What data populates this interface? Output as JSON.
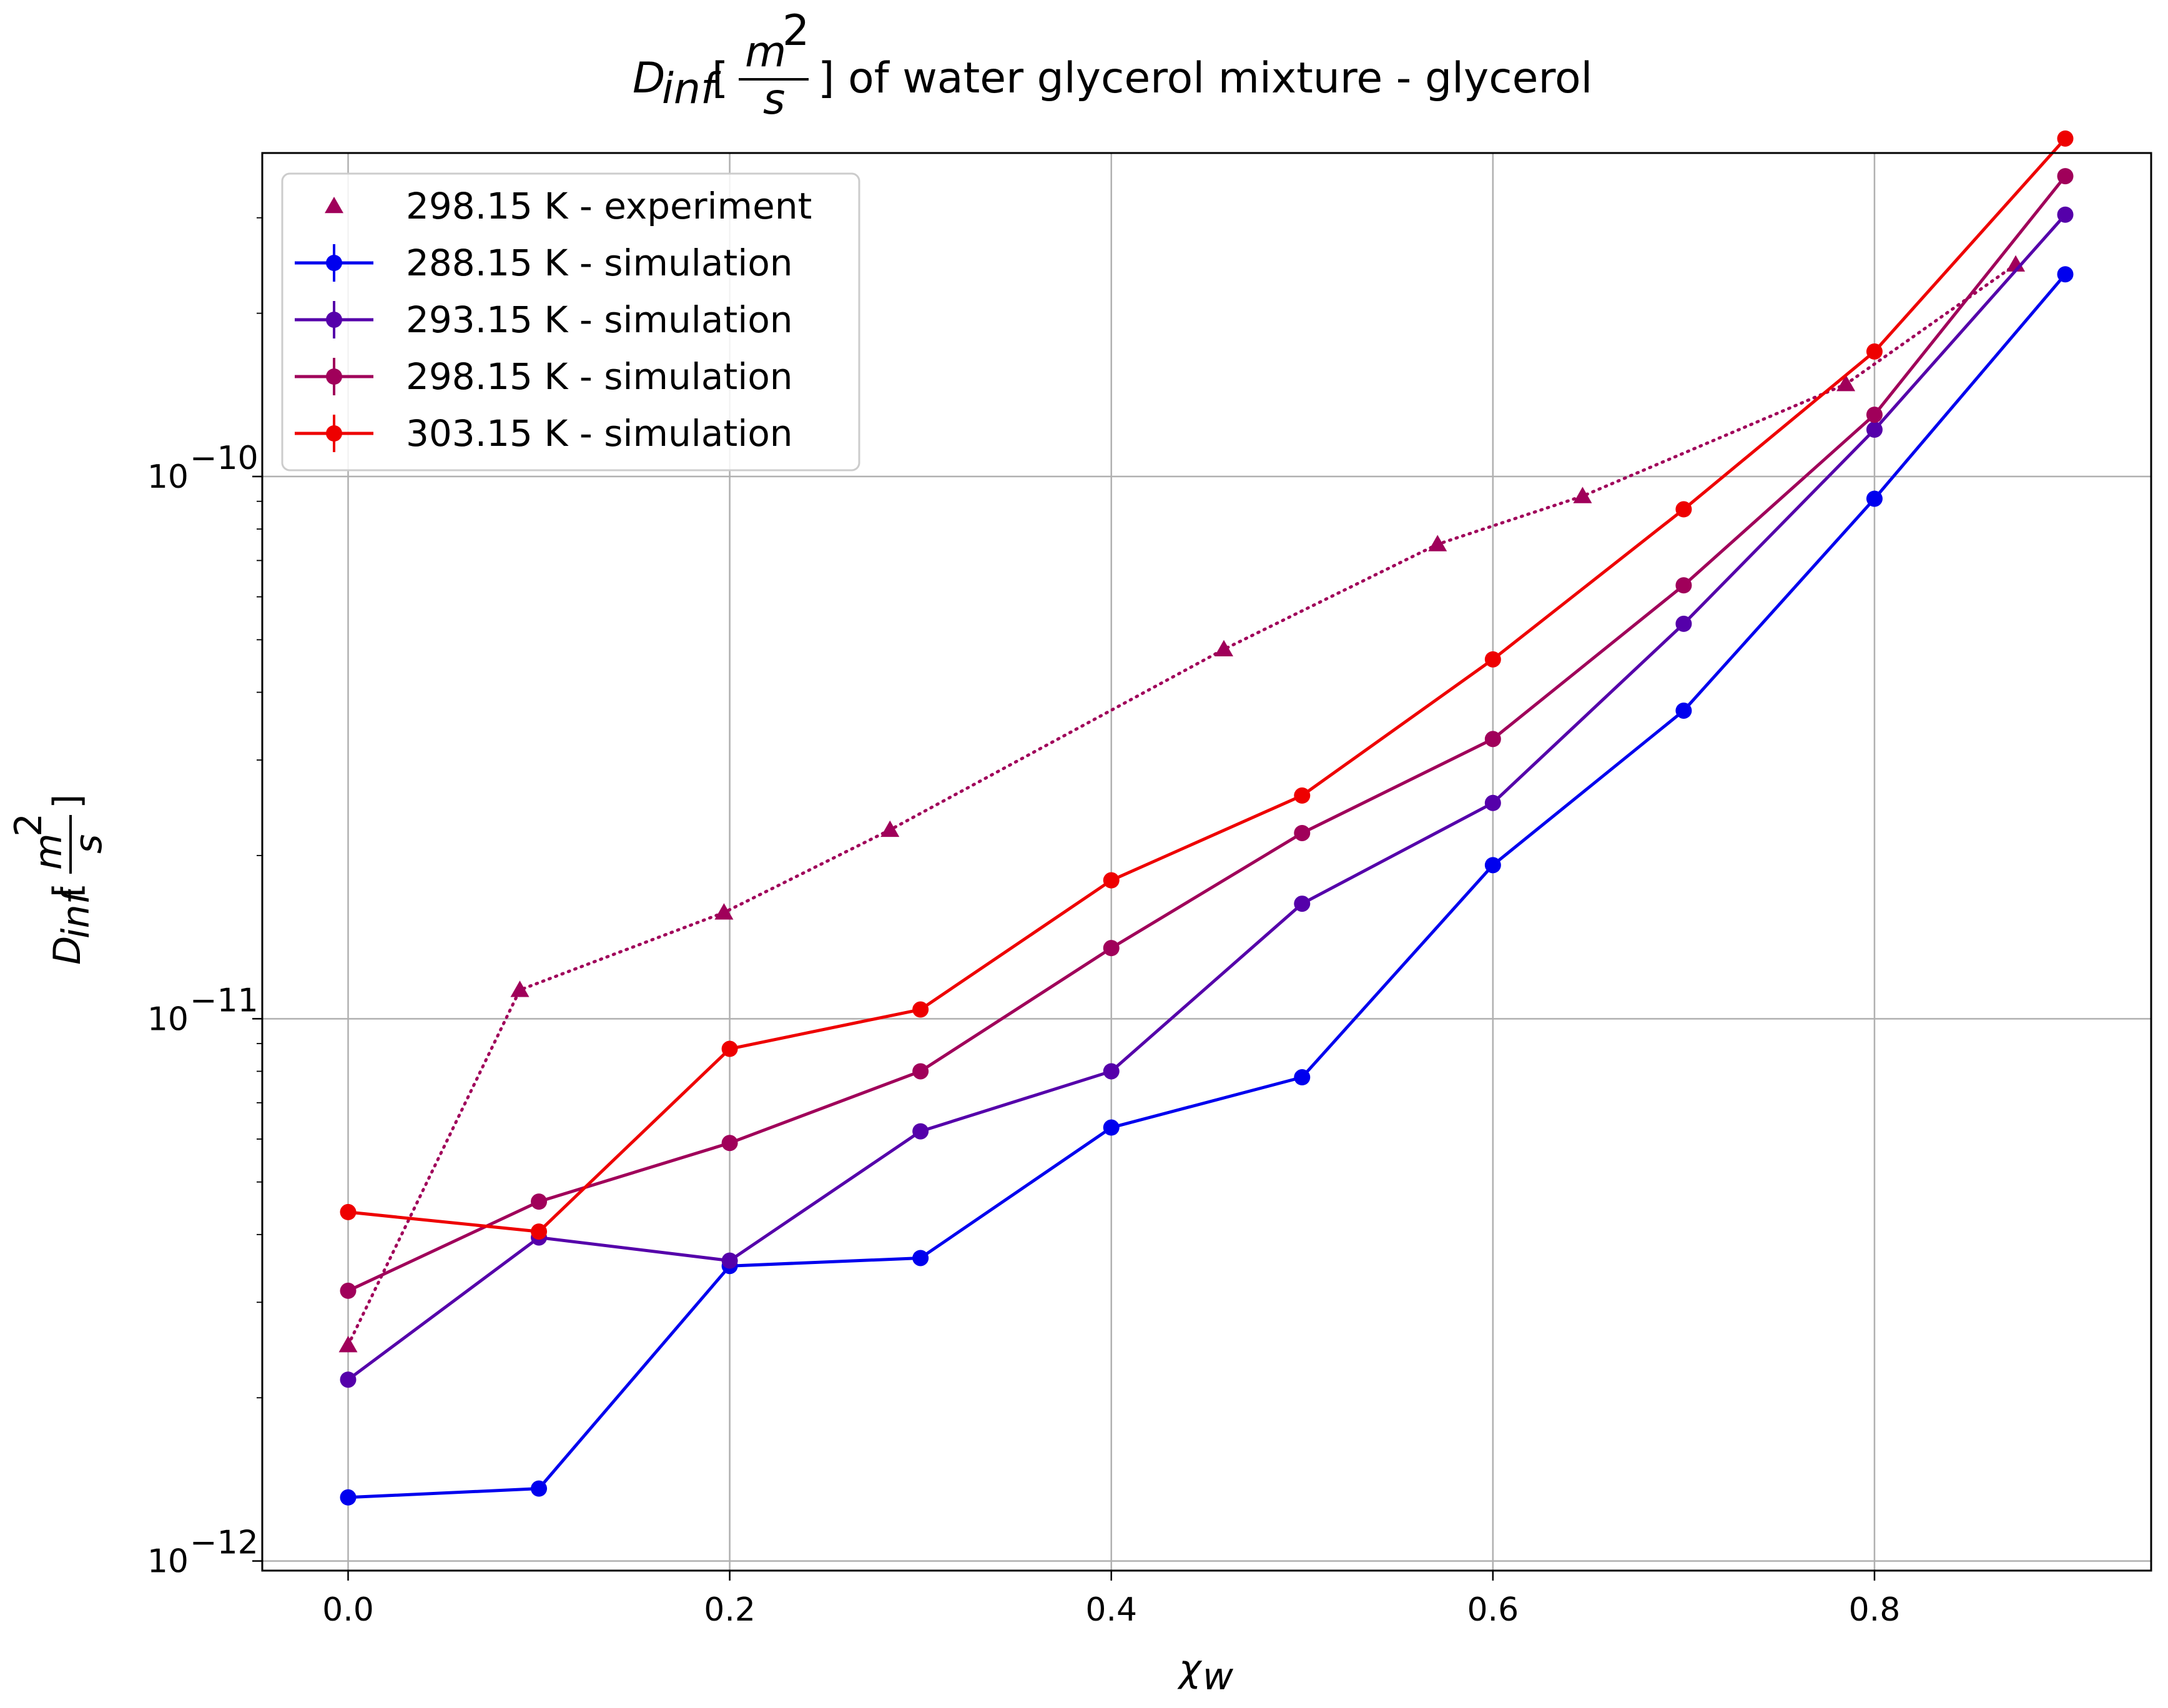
{
  "chart_data": {
    "type": "line",
    "title": {
      "symbol": "D",
      "sub": "inf",
      "open": "[",
      "num": "m",
      "sup": "2",
      "den": "s",
      "rest": "] of water glycerol mixture - glycerol"
    },
    "xlabel": {
      "symbol": "χ",
      "sub": "w"
    },
    "ylabel": {
      "symbol": "D",
      "sub": "inf",
      "open": "[",
      "num": "m",
      "sup": "2",
      "den": "s",
      "close": "]"
    },
    "xlim": [
      -0.045,
      0.945
    ],
    "ylim": [
      9.6e-13,
      3.95e-10
    ],
    "yscale": "log",
    "grid": true,
    "legend_position": "top-left",
    "xticks": [
      {
        "value": 0.0,
        "label": "0.0"
      },
      {
        "value": 0.2,
        "label": "0.2"
      },
      {
        "value": 0.4,
        "label": "0.4"
      },
      {
        "value": 0.6,
        "label": "0.6"
      },
      {
        "value": 0.8,
        "label": "0.8"
      }
    ],
    "yticks": [
      {
        "value": 1e-12,
        "base": "10",
        "exp": "−12"
      },
      {
        "value": 1e-11,
        "base": "10",
        "exp": "−11"
      },
      {
        "value": 1e-10,
        "base": "10",
        "exp": "−10"
      }
    ],
    "series": [
      {
        "name": "298.15 K - experiment",
        "style": "dotted-triangle",
        "color": "#a0005a",
        "points": [
          [
            0.0,
            2.5e-12
          ],
          [
            0.09,
            1.13e-11
          ],
          [
            0.197,
            1.57e-11
          ],
          [
            0.284,
            2.23e-11
          ],
          [
            0.459,
            4.8e-11
          ],
          [
            0.571,
            7.5e-11
          ],
          [
            0.647,
            9.2e-11
          ],
          [
            0.785,
            1.48e-10
          ],
          [
            0.874,
            2.46e-10
          ]
        ]
      },
      {
        "name": "288.15 K - simulation",
        "style": "solid-circle",
        "color": "#0000ee",
        "points": [
          [
            0.0,
            1.31e-12
          ],
          [
            0.1,
            1.36e-12
          ],
          [
            0.2,
            3.5e-12
          ],
          [
            0.3,
            3.62e-12
          ],
          [
            0.4,
            6.3e-12
          ],
          [
            0.5,
            7.8e-12
          ],
          [
            0.6,
            1.92e-11
          ],
          [
            0.7,
            3.7e-11
          ],
          [
            0.8,
            9.1e-11
          ],
          [
            0.9,
            2.36e-10
          ]
        ]
      },
      {
        "name": "293.15 K - simulation",
        "style": "solid-circle",
        "color": "#5500aa",
        "points": [
          [
            0.0,
            2.16e-12
          ],
          [
            0.1,
            3.95e-12
          ],
          [
            0.2,
            3.58e-12
          ],
          [
            0.3,
            6.2e-12
          ],
          [
            0.4,
            8e-12
          ],
          [
            0.5,
            1.63e-11
          ],
          [
            0.6,
            2.5e-11
          ],
          [
            0.7,
            5.35e-11
          ],
          [
            0.8,
            1.22e-10
          ],
          [
            0.9,
            3.04e-10
          ]
        ]
      },
      {
        "name": "298.15 K - simulation",
        "style": "solid-circle",
        "color": "#a0005a",
        "points": [
          [
            0.0,
            3.15e-12
          ],
          [
            0.1,
            4.6e-12
          ],
          [
            0.2,
            5.9e-12
          ],
          [
            0.3,
            8e-12
          ],
          [
            0.4,
            1.35e-11
          ],
          [
            0.5,
            2.2e-11
          ],
          [
            0.6,
            3.28e-11
          ],
          [
            0.7,
            6.3e-11
          ],
          [
            0.8,
            1.3e-10
          ],
          [
            0.9,
            3.58e-10
          ]
        ]
      },
      {
        "name": "303.15 K - simulation",
        "style": "solid-circle",
        "color": "#ee0000",
        "points": [
          [
            0.0,
            4.4e-12
          ],
          [
            0.1,
            4.05e-12
          ],
          [
            0.2,
            8.8e-12
          ],
          [
            0.3,
            1.04e-11
          ],
          [
            0.4,
            1.8e-11
          ],
          [
            0.5,
            2.58e-11
          ],
          [
            0.6,
            4.6e-11
          ],
          [
            0.7,
            8.7e-11
          ],
          [
            0.8,
            1.7e-10
          ],
          [
            0.9,
            4.2e-10
          ]
        ]
      }
    ]
  }
}
